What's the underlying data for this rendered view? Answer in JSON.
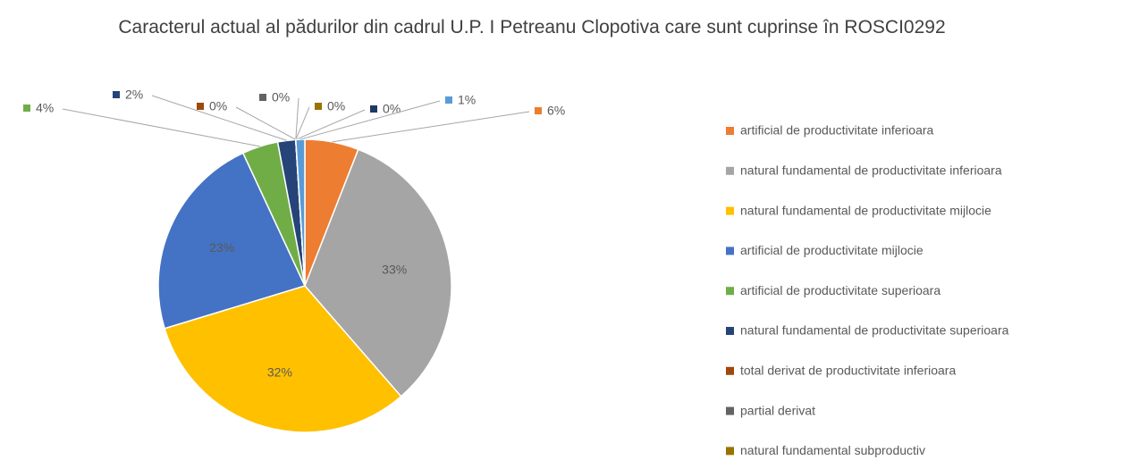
{
  "chart_data": {
    "type": "pie",
    "title": "Caracterul actual al pădurilor din cadrul U.P. I Petreanu Clopotiva care sunt cuprinse în ROSCI0292",
    "categories": [
      "artificial de productivitate inferioara",
      "natural fundamental de productivitate inferioara",
      "natural fundamental de productivitate mijlocie",
      "artificial de productivitate mijlocie",
      "artificial de productivitate superioara",
      "natural fundamental de productivitate superioara",
      "total derivat de productivitate inferioara",
      "partial derivat",
      "natural fundamental subproductiv",
      null,
      null
    ],
    "values": [
      6,
      33,
      32,
      23,
      4,
      2,
      0,
      0,
      0,
      0,
      1
    ],
    "value_labels": [
      "6%",
      "33%",
      "32%",
      "23%",
      "4%",
      "2%",
      "0%",
      "0%",
      "0%",
      "0%",
      "1%"
    ],
    "colors": [
      "#ed7d31",
      "#a5a5a5",
      "#ffc000",
      "#4472c4",
      "#70ad47",
      "#264478",
      "#9e480e",
      "#636363",
      "#997300",
      "#1f3864",
      "#5b9bd5"
    ],
    "legend": "right"
  }
}
